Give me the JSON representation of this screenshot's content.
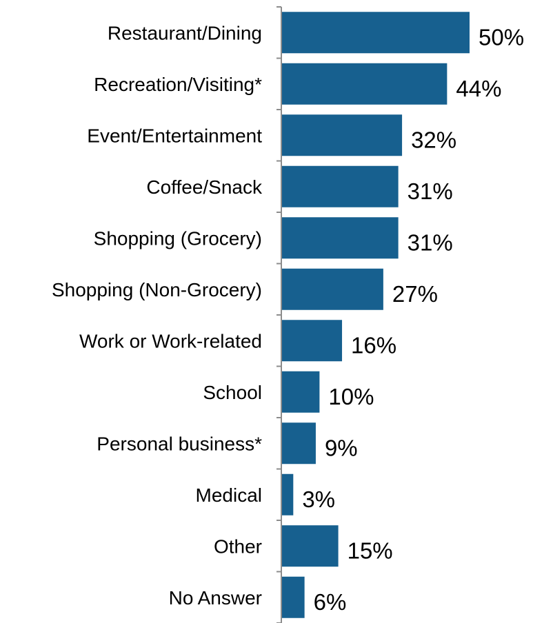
{
  "chart_data": {
    "type": "bar",
    "orientation": "horizontal",
    "categories": [
      "Restaurant/Dining",
      "Recreation/Visiting*",
      "Event/Entertainment",
      "Coffee/Snack",
      "Shopping (Grocery)",
      "Shopping (Non-Grocery)",
      "Work or Work-related",
      "School",
      "Personal business*",
      "Medical",
      "Other",
      "No Answer"
    ],
    "values": [
      50,
      44,
      32,
      31,
      31,
      27,
      16,
      10,
      9,
      3,
      15,
      6
    ],
    "value_labels": [
      "50%",
      "44%",
      "32%",
      "31%",
      "31%",
      "27%",
      "16%",
      "10%",
      "9%",
      "3%",
      "15%",
      "6%"
    ],
    "unit": "%",
    "title": "",
    "xlabel": "",
    "ylabel": "",
    "xlim": [
      0,
      50
    ],
    "grid": false,
    "legend": "none",
    "bar_color": "#17608F"
  }
}
